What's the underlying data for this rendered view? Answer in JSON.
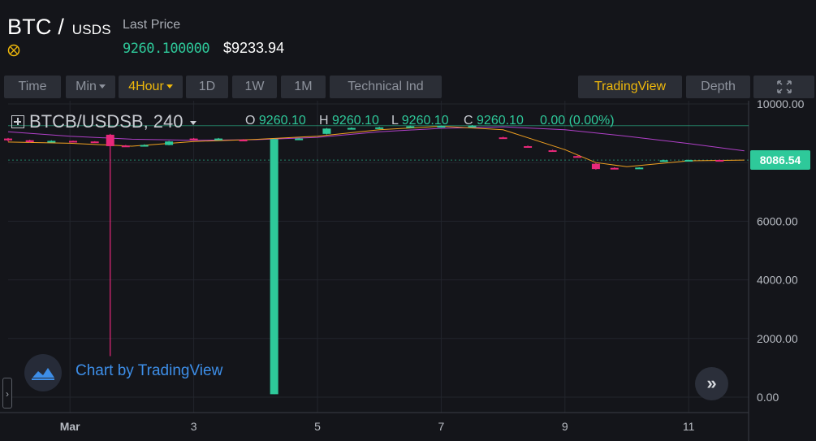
{
  "header": {
    "base": "BTC",
    "separator": "/",
    "quote": "USDS",
    "last_price_label": "Last Price",
    "last_price": "9260.100000",
    "usd_price": "$9233.94",
    "coin_icon": "coin-icon"
  },
  "toolbar": {
    "time": "Time",
    "min": "Min",
    "four_hour": "4Hour",
    "one_day": "1D",
    "one_week": "1W",
    "one_month": "1M",
    "technical": "Technical Ind",
    "tradingview": "TradingView",
    "depth": "Depth",
    "fullscreen_icon": "fullscreen-icon",
    "active_color": "#f0b90b"
  },
  "legend": {
    "symbol": "BTCB/USDSB, 240",
    "o_label": "O",
    "o_value": "9260.10",
    "h_label": "H",
    "h_value": "9260.10",
    "l_label": "L",
    "l_value": "9260.10",
    "c_label": "C",
    "c_value": "9260.10",
    "change": "0.00 (0.00%)"
  },
  "watermark": {
    "text": "Chart by TradingView"
  },
  "chart_data": {
    "type": "candlestick",
    "x_tick_labels": [
      "Mar",
      "3",
      "5",
      "7",
      "9",
      "11"
    ],
    "y_tick_labels": [
      "10000.00",
      "8000.00",
      "6000.00",
      "4000.00",
      "2000.00",
      "0.00"
    ],
    "ylim": [
      0,
      10000
    ],
    "current_price_label": "8086.54",
    "current_price": 8086.54,
    "up_color": "#2ec99a",
    "down_color": "#e8287a",
    "grid": true,
    "candles": [
      {
        "x": 0.0,
        "o": 8820,
        "c": 8760,
        "h": 8840,
        "l": 8720
      },
      {
        "x": 0.35,
        "o": 8760,
        "c": 8700,
        "h": 8780,
        "l": 8680
      },
      {
        "x": 0.7,
        "o": 8700,
        "c": 8740,
        "h": 8760,
        "l": 8690
      },
      {
        "x": 1.05,
        "o": 8740,
        "c": 8720,
        "h": 8750,
        "l": 8700
      },
      {
        "x": 1.4,
        "o": 8720,
        "c": 8700,
        "h": 8730,
        "l": 8680
      },
      {
        "x": 1.65,
        "o": 8950,
        "c": 8560,
        "h": 8980,
        "l": 1400
      },
      {
        "x": 1.9,
        "o": 8580,
        "c": 8560,
        "h": 8600,
        "l": 8540
      },
      {
        "x": 2.2,
        "o": 8560,
        "c": 8600,
        "h": 8620,
        "l": 8550
      },
      {
        "x": 2.6,
        "o": 8600,
        "c": 8720,
        "h": 8740,
        "l": 8590
      },
      {
        "x": 3.0,
        "o": 8820,
        "c": 8800,
        "h": 8840,
        "l": 8780
      },
      {
        "x": 3.4,
        "o": 8800,
        "c": 8820,
        "h": 8840,
        "l": 8790
      },
      {
        "x": 3.8,
        "o": 8780,
        "c": 8760,
        "h": 8800,
        "l": 8740
      },
      {
        "x": 4.3,
        "o": 100,
        "c": 8800,
        "h": 8820,
        "l": 100
      },
      {
        "x": 4.7,
        "o": 8800,
        "c": 8820,
        "h": 8840,
        "l": 8790
      },
      {
        "x": 5.15,
        "o": 8980,
        "c": 9160,
        "h": 9180,
        "l": 8960
      },
      {
        "x": 5.55,
        "o": 9160,
        "c": 9180,
        "h": 9200,
        "l": 9140
      },
      {
        "x": 6.0,
        "o": 9180,
        "c": 9200,
        "h": 9220,
        "l": 9170
      },
      {
        "x": 6.5,
        "o": 9220,
        "c": 9240,
        "h": 9260,
        "l": 9200
      },
      {
        "x": 7.0,
        "o": 9240,
        "c": 9250,
        "h": 9260,
        "l": 9220
      },
      {
        "x": 7.5,
        "o": 9250,
        "c": 9260,
        "h": 9280,
        "l": 9240
      },
      {
        "x": 8.0,
        "o": 8860,
        "c": 8840,
        "h": 8880,
        "l": 8820
      },
      {
        "x": 8.4,
        "o": 8560,
        "c": 8540,
        "h": 8580,
        "l": 8520
      },
      {
        "x": 8.8,
        "o": 8420,
        "c": 8400,
        "h": 8440,
        "l": 8380
      },
      {
        "x": 9.2,
        "o": 8220,
        "c": 8200,
        "h": 8240,
        "l": 8180
      },
      {
        "x": 9.5,
        "o": 7960,
        "c": 7780,
        "h": 7980,
        "l": 7760
      },
      {
        "x": 9.8,
        "o": 7820,
        "c": 7800,
        "h": 7840,
        "l": 7780
      },
      {
        "x": 10.2,
        "o": 7820,
        "c": 7830,
        "h": 7840,
        "l": 7810
      },
      {
        "x": 10.6,
        "o": 8060,
        "c": 8080,
        "h": 8100,
        "l": 8050
      },
      {
        "x": 11.0,
        "o": 8080,
        "c": 8090,
        "h": 8100,
        "l": 8070
      },
      {
        "x": 11.5,
        "o": 8090,
        "c": 8086.54,
        "h": 8100,
        "l": 8080
      }
    ],
    "ma_short": {
      "color": "#f0a020",
      "points": [
        [
          0,
          8700
        ],
        [
          1,
          8660
        ],
        [
          2,
          8560
        ],
        [
          3,
          8720
        ],
        [
          4,
          8790
        ],
        [
          5,
          8900
        ],
        [
          6,
          9120
        ],
        [
          7,
          9240
        ],
        [
          8,
          9120
        ],
        [
          9,
          8440
        ],
        [
          9.5,
          8000
        ],
        [
          10,
          7860
        ],
        [
          11,
          8060
        ],
        [
          11.9,
          8086
        ]
      ]
    },
    "ma_long": {
      "color": "#b040c8",
      "points": [
        [
          0,
          9050
        ],
        [
          1,
          8900
        ],
        [
          2,
          8800
        ],
        [
          3,
          8760
        ],
        [
          4,
          8780
        ],
        [
          5,
          8860
        ],
        [
          6,
          9050
        ],
        [
          7,
          9170
        ],
        [
          8,
          9220
        ],
        [
          9,
          9120
        ],
        [
          10,
          8900
        ],
        [
          11,
          8650
        ],
        [
          11.9,
          8400
        ]
      ]
    },
    "ref_line": {
      "value": 9260.1,
      "color": "#2ec99a"
    }
  }
}
